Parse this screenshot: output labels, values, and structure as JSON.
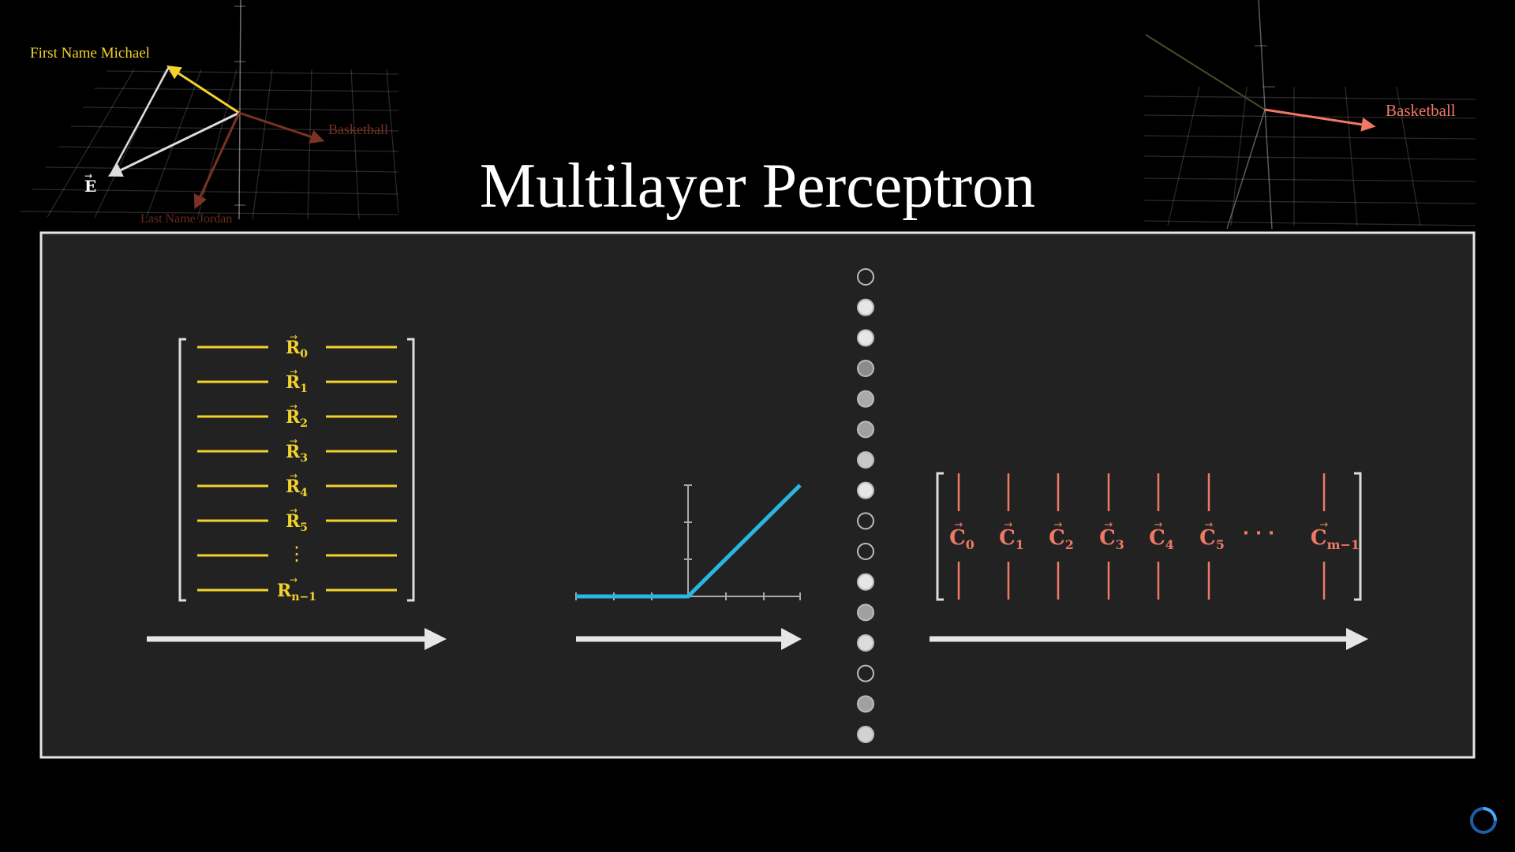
{
  "title": "Multilayer Perceptron",
  "colors": {
    "background": "#000000",
    "panel": "#222222",
    "panel_border": "#e6e6e6",
    "yellow": "#f3d22c",
    "cyan": "#29b6e0",
    "salmon": "#f07966",
    "arrow": "#e6e6e6"
  },
  "left_embedding_plot": {
    "labels": {
      "first_name": "First Name Michael",
      "basketball": "Basketball",
      "last_name": "Last Name Jordan",
      "e": "E"
    }
  },
  "right_embedding_plot": {
    "labels": {
      "basketball": "Basketball"
    }
  },
  "row_matrix": {
    "rows": [
      {
        "base": "R",
        "sub": "0"
      },
      {
        "base": "R",
        "sub": "1"
      },
      {
        "base": "R",
        "sub": "2"
      },
      {
        "base": "R",
        "sub": "3"
      },
      {
        "base": "R",
        "sub": "4"
      },
      {
        "base": "R",
        "sub": "5"
      },
      {
        "base": "⋮",
        "sub": ""
      },
      {
        "base": "R",
        "sub": "n−1"
      }
    ]
  },
  "relu": {
    "type": "ReLU"
  },
  "neurons": {
    "brightness": [
      0.0,
      0.95,
      0.95,
      0.5,
      0.65,
      0.6,
      0.8,
      0.95,
      0.0,
      0.0,
      0.95,
      0.6,
      0.9,
      0.0,
      0.6,
      0.85
    ]
  },
  "column_matrix": {
    "columns": [
      {
        "base": "C",
        "sub": "0"
      },
      {
        "base": "C",
        "sub": "1"
      },
      {
        "base": "C",
        "sub": "2"
      },
      {
        "base": "C",
        "sub": "3"
      },
      {
        "base": "C",
        "sub": "4"
      },
      {
        "base": "C",
        "sub": "5"
      },
      {
        "base": "C",
        "sub": "m−1"
      }
    ],
    "ellipsis": "· · ·"
  },
  "loading_icon": "loading-spinner-icon"
}
